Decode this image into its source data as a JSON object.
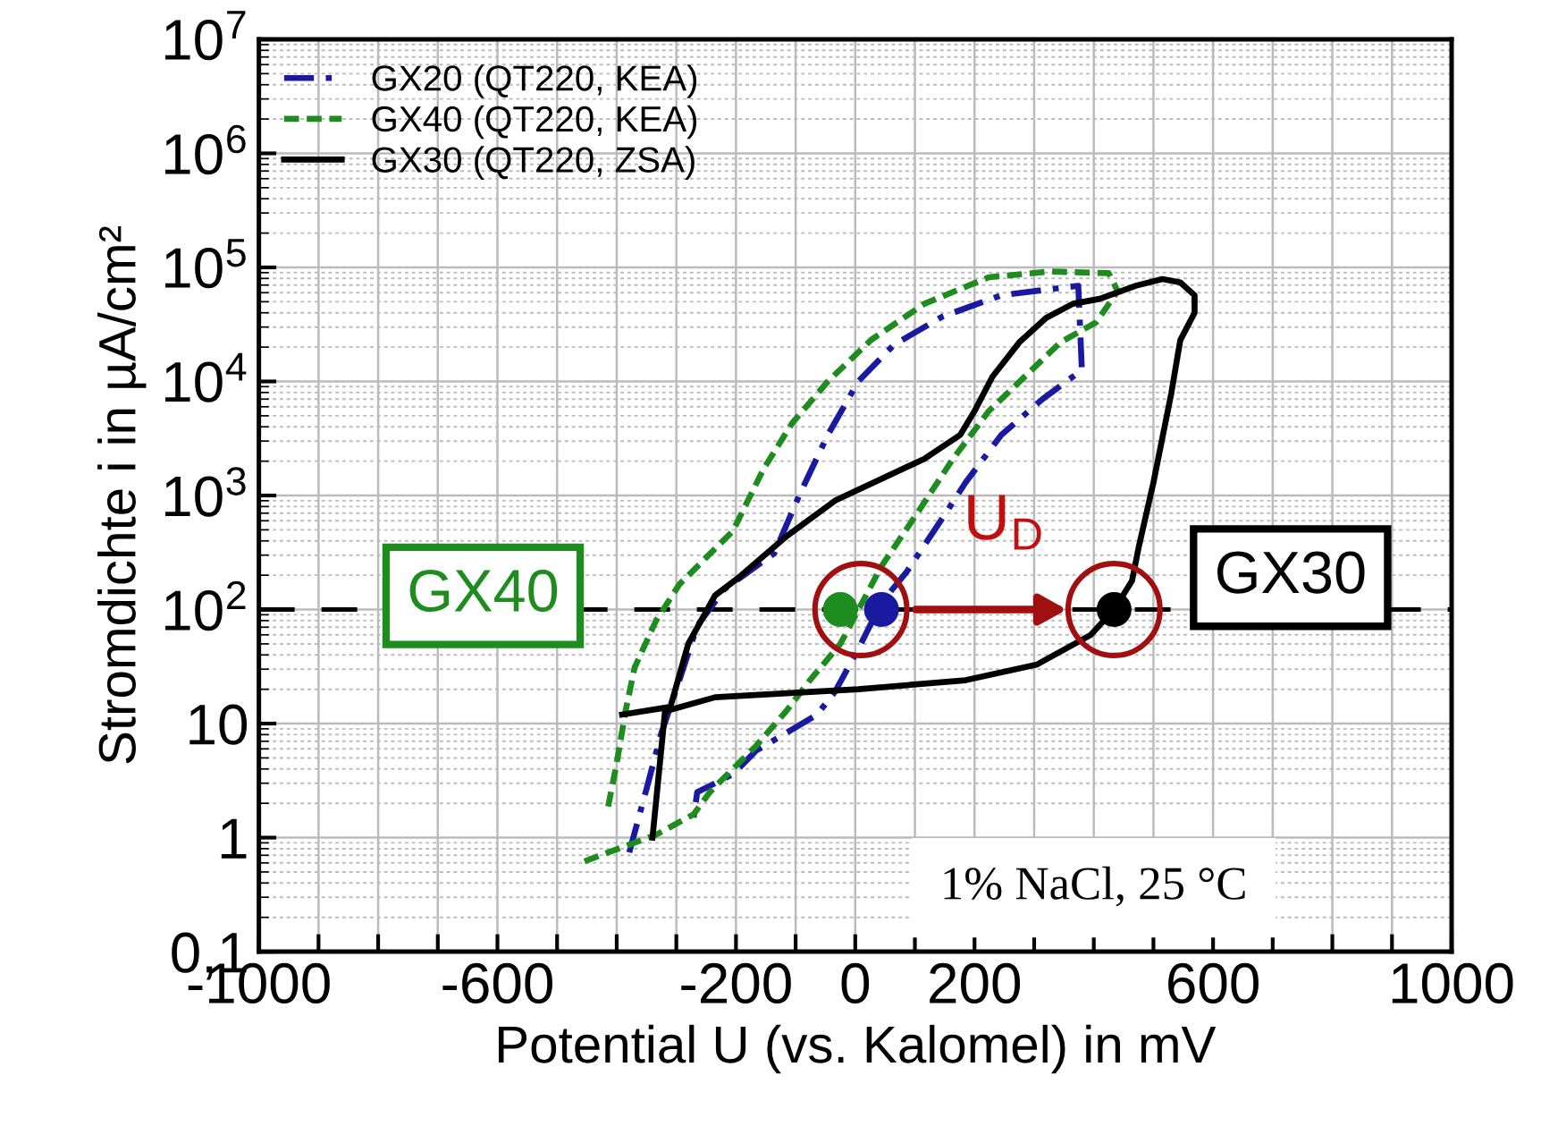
{
  "chart_data": {
    "type": "line",
    "xlabel": "Potential U (vs. Kalomel) in mV",
    "ylabel": "Stromdichte i in µA/cm²",
    "log": "y",
    "grid": true,
    "legend": "top left",
    "xlim": [
      -1000,
      1000
    ],
    "xticks": [
      -1000,
      {
        "value": -900,
        "label": null
      },
      {
        "value": -800,
        "label": null
      },
      {
        "value": -700,
        "label": null
      },
      -600,
      {
        "value": -500,
        "label": null
      },
      {
        "value": -400,
        "label": null
      },
      {
        "value": -300,
        "label": null
      },
      -200,
      {
        "value": -100,
        "label": null
      },
      0,
      {
        "value": 100,
        "label": null
      },
      200,
      {
        "value": 300,
        "label": null
      },
      {
        "value": 400,
        "label": null
      },
      {
        "value": 500,
        "label": null
      },
      600,
      {
        "value": 700,
        "label": null
      },
      {
        "value": 800,
        "label": null
      },
      {
        "value": 900,
        "label": null
      },
      1000
    ],
    "ylim": [
      0.1,
      10000000
    ],
    "yticks": [
      {
        "value": 0.1,
        "label": "0,1"
      },
      1,
      10,
      {
        "value": 100,
        "label": "10$^{2}$"
      },
      {
        "value": 1000,
        "label": "10$^{3}$"
      },
      {
        "value": 10000,
        "label": "10$^{4}$"
      },
      {
        "value": 100000,
        "label": "10$^{5}$"
      },
      {
        "value": 1000000,
        "label": "10$^{6}$"
      },
      {
        "value": 10000000,
        "label": "10$^{7}$"
      }
    ],
    "series": [
      {
        "name": "GX20 (QT220, KEA)",
        "color": "#1a1aa0",
        "line_style": "dashdot",
        "x": [
          -379,
          -349,
          -325,
          -295,
          -265,
          -220,
          -136,
          -94,
          -46,
          5,
          65,
          146,
          245,
          374,
          380,
          314,
          245,
          185,
          146,
          86,
          44,
          5,
          -34,
          -64,
          -115,
          -166,
          -205,
          -265,
          -271
        ],
        "values": [
          0.74,
          2.8,
          8.3,
          24,
          72,
          150,
          310,
          1000,
          3400,
          10000,
          21000,
          37000,
          57000,
          69000,
          12600,
          7000,
          3400,
          1300,
          630,
          213,
          115,
          45,
          19,
          12,
          8.3,
          5.8,
          3.6,
          2.5,
          1.5
        ]
      },
      {
        "name": "GX40 (QT220, KEA)",
        "color": "#1e8c1e",
        "line_style": "dashed",
        "x": [
          -454,
          -334,
          -271,
          -244,
          -214,
          -166,
          -115,
          -76,
          -25,
          44,
          104,
          164,
          224,
          284,
          344,
          404,
          440,
          425,
          326,
          224,
          116,
          26,
          -46,
          -106,
          -154,
          -205,
          -295,
          -334,
          -370,
          -385,
          -400,
          -415
        ],
        "values": [
          0.62,
          1.06,
          1.6,
          2.5,
          3.6,
          6.4,
          13,
          24,
          50,
          240,
          700,
          2100,
          5500,
          11000,
          22000,
          33000,
          62000,
          89000,
          92000,
          82000,
          48000,
          23000,
          10000,
          4300,
          1700,
          490,
          166,
          80,
          31,
          13,
          4.5,
          1.8
        ]
      },
      {
        "name": "GX30 (QT220, ZSA)",
        "color": "#000000",
        "line_style": "solid",
        "x": [
          -340,
          -319,
          -235,
          5,
          185,
          305,
          395,
          434,
          464,
          476,
          500,
          530,
          545,
          569,
          569,
          545,
          515,
          470,
          410,
          365,
          320,
          275,
          230,
          200,
          176,
          116,
          -34,
          -115,
          -196,
          -235,
          -280,
          -310,
          -391
        ],
        "values": [
          1.0,
          12.8,
          17,
          20,
          24,
          33,
          60,
          100,
          178,
          366,
          1300,
          7900,
          23000,
          40000,
          57000,
          74000,
          79000,
          69000,
          53000,
          48000,
          36000,
          22000,
          11000,
          5500,
          3400,
          2100,
          900,
          440,
          190,
          133,
          50,
          14,
          12
        ]
      },
      {
        "type": "scatter",
        "marker": "circle",
        "x": [
          -25,
          44,
          434
        ],
        "values": [
          100,
          100,
          100
        ],
        "colors": [
          "#1e8c1e",
          "#1a1aa0",
          "#000000"
        ]
      }
    ],
    "ref_lines": [
      {
        "axis": "y",
        "value": 100,
        "color": "#000000",
        "line_style": "dashed"
      }
    ],
    "annotations": [
      "GX40",
      "GX30",
      "U$_{D}$",
      "1% NaCl, 25 °C"
    ]
  }
}
